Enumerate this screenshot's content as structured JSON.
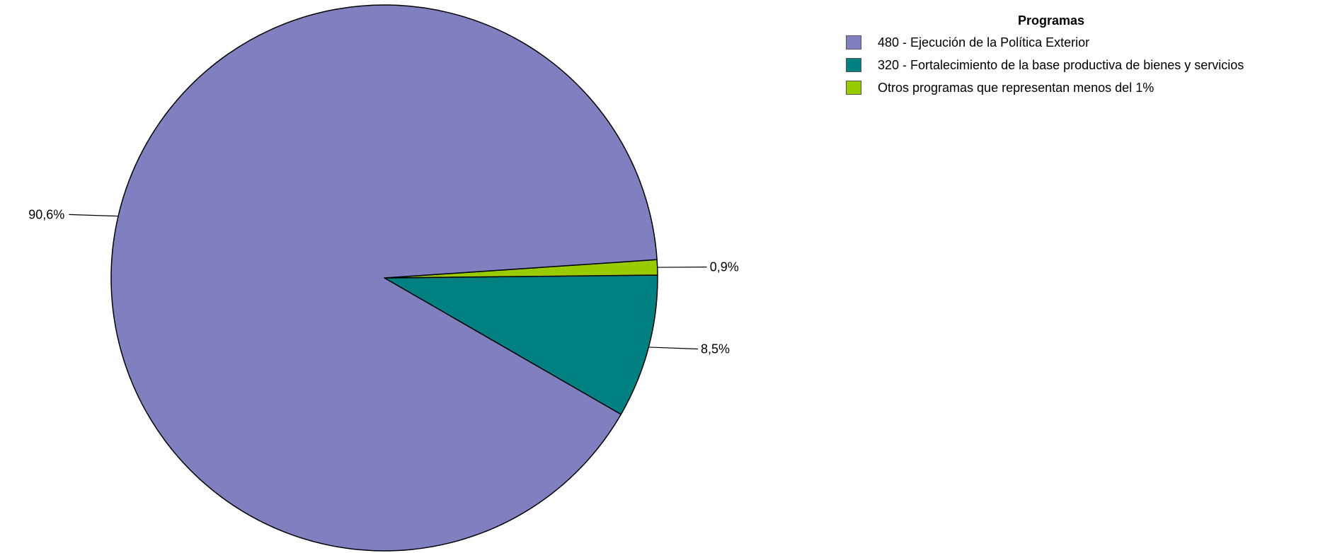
{
  "chart_data": {
    "type": "pie",
    "legend_title": "Programas",
    "legend_position": "top-right",
    "slices": [
      {
        "name": "320 - Fortalecimiento de la base productiva de bienes y servicios",
        "value": 8.5,
        "label": "8,5%",
        "color": "#008080"
      },
      {
        "name": "Otros programas que representan menos del 1%",
        "value": 0.9,
        "label": "0,9%",
        "color": "#99CC00"
      },
      {
        "name": "480 - Ejecución de la Política Exterior",
        "value": 90.6,
        "label": "90,6%",
        "color": "#8080C0"
      }
    ],
    "legend": [
      {
        "label": "480 - Ejecución de la Política Exterior",
        "color": "#8080C0"
      },
      {
        "label": "320 - Fortalecimiento de la base productiva de bienes y servicios",
        "color": "#008080"
      },
      {
        "label": "Otros programas que representan menos del 1%",
        "color": "#99CC00"
      }
    ]
  }
}
